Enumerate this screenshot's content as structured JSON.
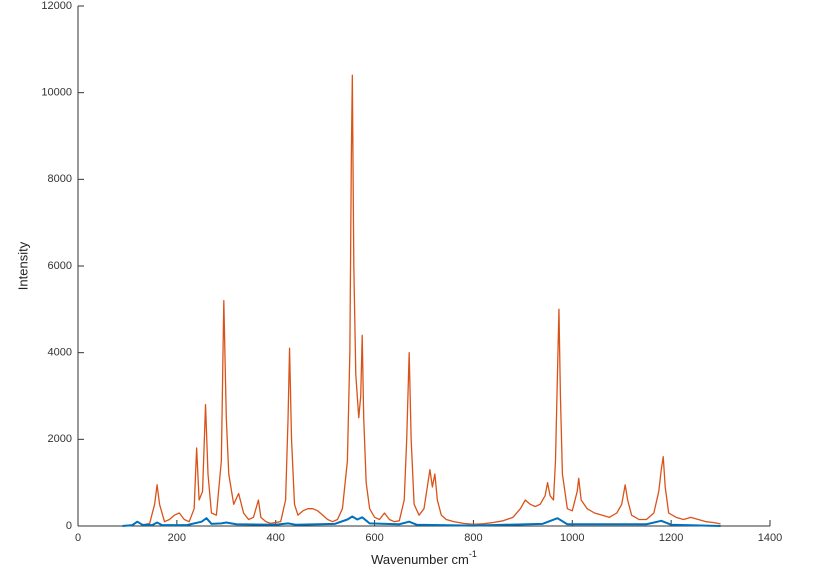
{
  "chart_data": {
    "type": "line",
    "ylabel": "Intensity",
    "xlabel": "Wavenumber cm",
    "xlabel_superscript": "-1",
    "xlim": [
      0,
      1400
    ],
    "xticks": [
      0,
      200,
      400,
      600,
      800,
      1000,
      1200,
      1400
    ],
    "ylim": [
      0,
      12000
    ],
    "yticks": [
      0,
      2000,
      4000,
      6000,
      8000,
      10000,
      12000
    ],
    "grid": false,
    "series": [
      {
        "color": "#d95319",
        "x": [
          130,
          145,
          155,
          160,
          165,
          175,
          185,
          195,
          205,
          215,
          225,
          235,
          240,
          245,
          252,
          258,
          263,
          270,
          280,
          290,
          295,
          300,
          305,
          315,
          325,
          335,
          345,
          355,
          365,
          370,
          380,
          390,
          400,
          410,
          420,
          425,
          428,
          432,
          438,
          445,
          455,
          465,
          475,
          485,
          495,
          505,
          515,
          525,
          535,
          545,
          550,
          553,
          555,
          558,
          562,
          568,
          572,
          575,
          578,
          583,
          590,
          600,
          610,
          620,
          630,
          640,
          650,
          660,
          665,
          670,
          674,
          680,
          690,
          700,
          708,
          712,
          717,
          722,
          727,
          735,
          745,
          760,
          780,
          800,
          820,
          840,
          860,
          880,
          895,
          905,
          915,
          925,
          935,
          945,
          950,
          955,
          962,
          966,
          970,
          973,
          976,
          980,
          990,
          1000,
          1010,
          1013,
          1018,
          1030,
          1045,
          1060,
          1075,
          1090,
          1100,
          1107,
          1112,
          1120,
          1135,
          1150,
          1165,
          1175,
          1180,
          1184,
          1188,
          1195,
          1210,
          1225,
          1240,
          1255,
          1270,
          1285,
          1300
        ],
        "values": [
          20,
          60,
          500,
          950,
          500,
          100,
          150,
          250,
          300,
          150,
          100,
          400,
          1800,
          600,
          800,
          2800,
          1200,
          300,
          250,
          1500,
          5200,
          2500,
          1200,
          500,
          750,
          300,
          150,
          200,
          600,
          200,
          100,
          60,
          80,
          100,
          600,
          2500,
          4100,
          2000,
          500,
          250,
          350,
          400,
          400,
          350,
          250,
          150,
          100,
          150,
          400,
          1500,
          4000,
          8500,
          10400,
          6000,
          3500,
          2500,
          3000,
          4400,
          2500,
          1000,
          400,
          200,
          150,
          300,
          150,
          100,
          120,
          600,
          2000,
          4000,
          2000,
          500,
          250,
          400,
          1000,
          1300,
          900,
          1200,
          600,
          250,
          150,
          100,
          60,
          40,
          50,
          80,
          120,
          200,
          400,
          600,
          500,
          450,
          500,
          700,
          1000,
          700,
          600,
          1500,
          3500,
          5000,
          3000,
          1200,
          400,
          350,
          800,
          1100,
          600,
          400,
          300,
          250,
          200,
          300,
          500,
          950,
          600,
          250,
          150,
          150,
          300,
          800,
          1300,
          1600,
          900,
          300,
          200,
          150,
          200,
          150,
          100,
          80,
          50
        ]
      },
      {
        "color": "#0072bd",
        "x": [
          90,
          110,
          120,
          130,
          150,
          160,
          170,
          220,
          250,
          260,
          270,
          290,
          300,
          320,
          400,
          425,
          440,
          520,
          545,
          555,
          565,
          575,
          590,
          650,
          670,
          685,
          800,
          940,
          970,
          990,
          1150,
          1180,
          1200,
          1300
        ],
        "values": [
          0,
          20,
          100,
          30,
          20,
          80,
          20,
          20,
          100,
          180,
          50,
          60,
          80,
          40,
          30,
          60,
          30,
          50,
          150,
          220,
          150,
          200,
          60,
          40,
          100,
          30,
          10,
          50,
          180,
          40,
          40,
          120,
          30,
          0
        ]
      }
    ]
  }
}
